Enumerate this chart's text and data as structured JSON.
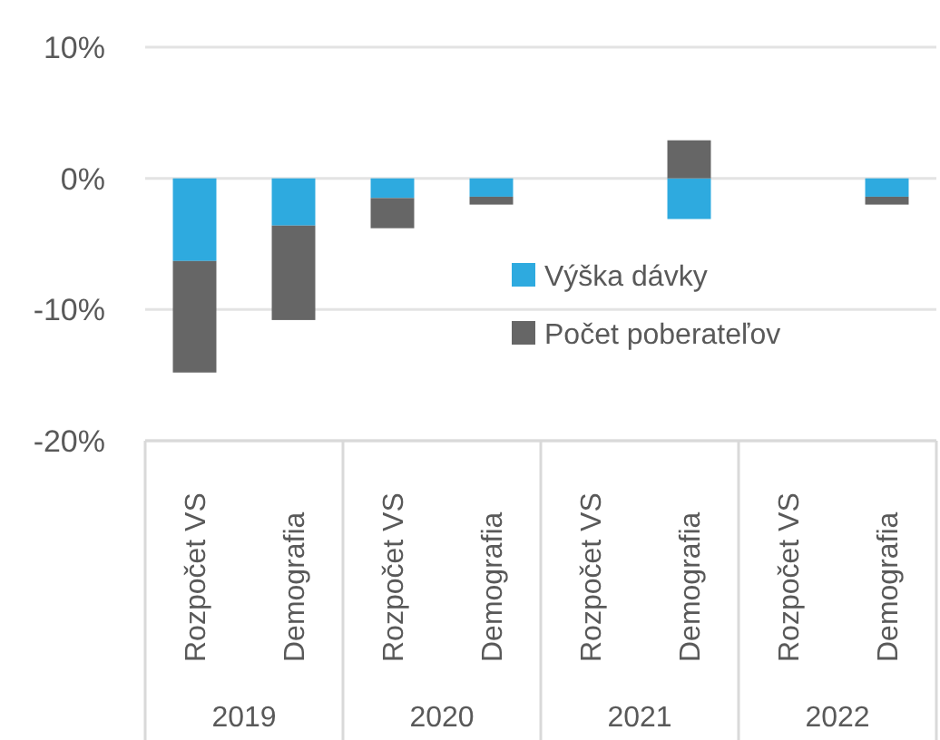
{
  "chart_data": {
    "type": "bar",
    "stacked": true,
    "categories": [
      "Rozpočet VS",
      "Demografia",
      "Rozpočet VS",
      "Demografia",
      "Rozpočet VS",
      "Demografia",
      "Rozpočet VS",
      "Demografia"
    ],
    "series": [
      {
        "name": "Výška dávky",
        "color": "#2eaadf",
        "values": [
          -6.3,
          -3.6,
          -1.5,
          -1.4,
          null,
          -3.1,
          null,
          -1.4
        ]
      },
      {
        "name": "Počet poberateľov",
        "color": "#666666",
        "values": [
          -8.5,
          -7.2,
          -2.3,
          -0.6,
          null,
          2.9,
          null,
          -0.6
        ]
      }
    ],
    "annotations": [
      "2019",
      "2020",
      "2021",
      "2022"
    ],
    "ylim": [
      -20,
      10
    ],
    "yticks": [
      {
        "value": -20,
        "label": "-20%"
      },
      {
        "value": -10,
        "label": "-10%"
      },
      {
        "value": 0,
        "label": "0%"
      },
      {
        "value": 10,
        "label": "10%"
      }
    ],
    "grid": "y",
    "legend": "center"
  }
}
